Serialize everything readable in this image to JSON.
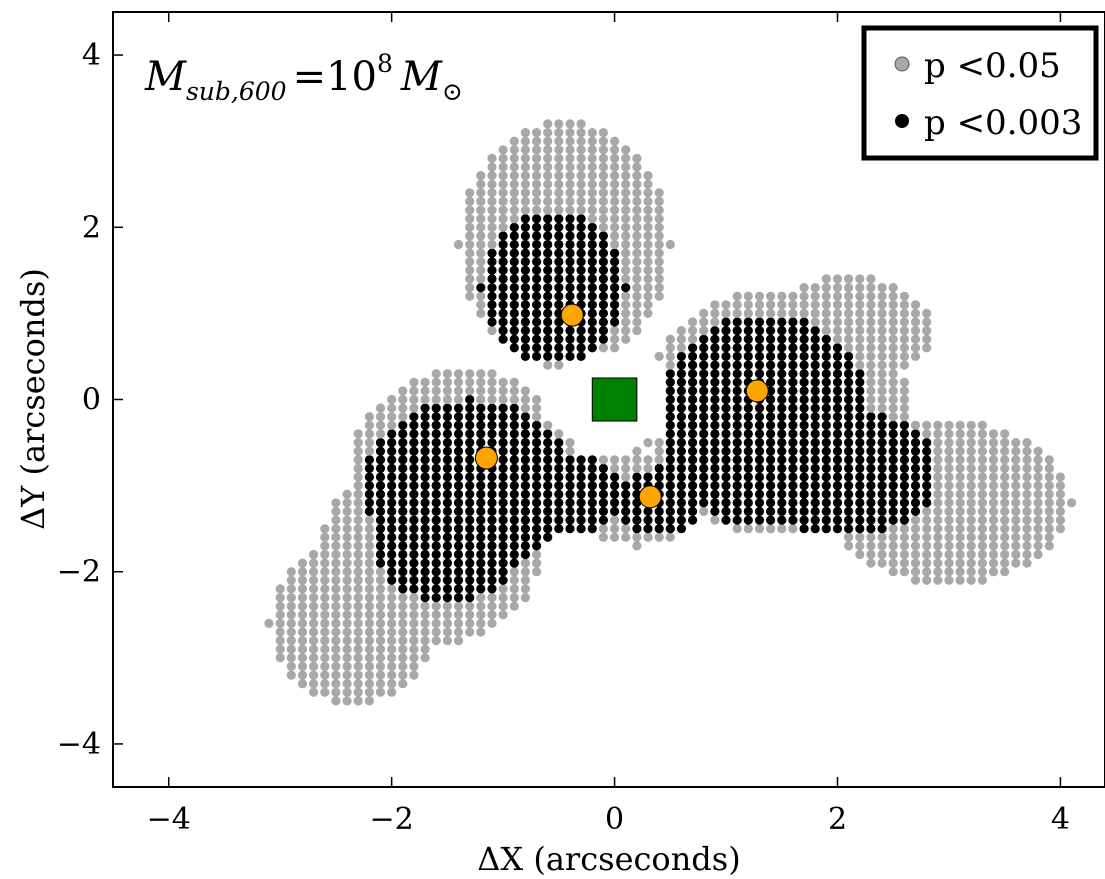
{
  "chart_data": {
    "type": "scatter",
    "xlabel": "ΔX (arcseconds)",
    "ylabel": "ΔY (arcseconds)",
    "xlim": [
      -4.5,
      4.4
    ],
    "ylim": [
      -4.5,
      4.5
    ],
    "x_ticks": [
      -4,
      -2,
      0,
      2,
      4
    ],
    "y_ticks": [
      -4,
      -2,
      0,
      2,
      4
    ],
    "x_tick_labels": [
      "−4",
      "−2",
      "0",
      "2",
      "4"
    ],
    "y_tick_labels": [
      "−4",
      "−2",
      "0",
      "2",
      "4"
    ],
    "grid": false,
    "legend_position": "top-right",
    "annotation": {
      "main": "M",
      "sub": "sub,600",
      "eq": "=10",
      "exp": "8",
      "unit": "M",
      "unit_sub": "⊙"
    },
    "grid_spacing": 0.1,
    "colors": {
      "p05": "#a8a8a8",
      "p003": "#000000",
      "image": "#ffa500",
      "source": "#008000"
    },
    "series": [
      {
        "name": "p <0.05",
        "color": "#a8a8a8",
        "regions": [
          {
            "type": "ellipse",
            "cx": -0.45,
            "cy": 1.8,
            "rx": 0.95,
            "ry": 1.45
          },
          {
            "type": "ellipse",
            "cx": -1.35,
            "cy": -0.85,
            "rx": 1.05,
            "ry": 1.2
          },
          {
            "type": "ellipse",
            "cx": -1.65,
            "cy": -1.75,
            "rx": 1.0,
            "ry": 1.1
          },
          {
            "type": "ellipse",
            "cx": -2.35,
            "cy": -2.6,
            "rx": 0.75,
            "ry": 0.95
          },
          {
            "type": "ellipse",
            "cx": 0.2,
            "cy": -1.15,
            "rx": 0.55,
            "ry": 0.55
          },
          {
            "type": "ellipse",
            "cx": 1.45,
            "cy": -0.15,
            "rx": 1.2,
            "ry": 1.45
          },
          {
            "type": "ellipse",
            "cx": 2.1,
            "cy": 0.8,
            "rx": 0.75,
            "ry": 0.65
          },
          {
            "type": "ellipse",
            "cx": 3.0,
            "cy": -1.2,
            "rx": 1.1,
            "ry": 0.95
          }
        ],
        "exclude": [
          {
            "type": "ellipse",
            "cx": 0.0,
            "cy": 0.0,
            "rx": 0.65,
            "ry": 0.55
          }
        ]
      },
      {
        "name": "p <0.003",
        "color": "#000000",
        "regions": [
          {
            "type": "ellipse",
            "cx": -0.55,
            "cy": 1.3,
            "rx": 0.65,
            "ry": 0.9
          },
          {
            "type": "ellipse",
            "cx": -1.3,
            "cy": -1.0,
            "rx": 0.95,
            "ry": 1.0
          },
          {
            "type": "ellipse",
            "cx": -1.5,
            "cy": -1.6,
            "rx": 0.7,
            "ry": 0.75
          },
          {
            "type": "ellipse",
            "cx": -0.35,
            "cy": -1.1,
            "rx": 0.45,
            "ry": 0.45
          },
          {
            "type": "ellipse",
            "cx": 0.4,
            "cy": -1.2,
            "rx": 0.4,
            "ry": 0.4
          },
          {
            "type": "ellipse",
            "cx": 1.35,
            "cy": -0.25,
            "rx": 0.95,
            "ry": 1.25
          },
          {
            "type": "ellipse",
            "cx": 2.05,
            "cy": -0.85,
            "rx": 0.85,
            "ry": 0.75
          }
        ],
        "exclude": []
      }
    ],
    "image_positions": [
      {
        "x": -0.38,
        "y": 0.98
      },
      {
        "x": -1.15,
        "y": -0.68
      },
      {
        "x": 0.32,
        "y": -1.13
      },
      {
        "x": 1.28,
        "y": 0.1
      }
    ],
    "source_position": {
      "x": 0.0,
      "y": 0.0,
      "half_size": 0.2
    }
  }
}
